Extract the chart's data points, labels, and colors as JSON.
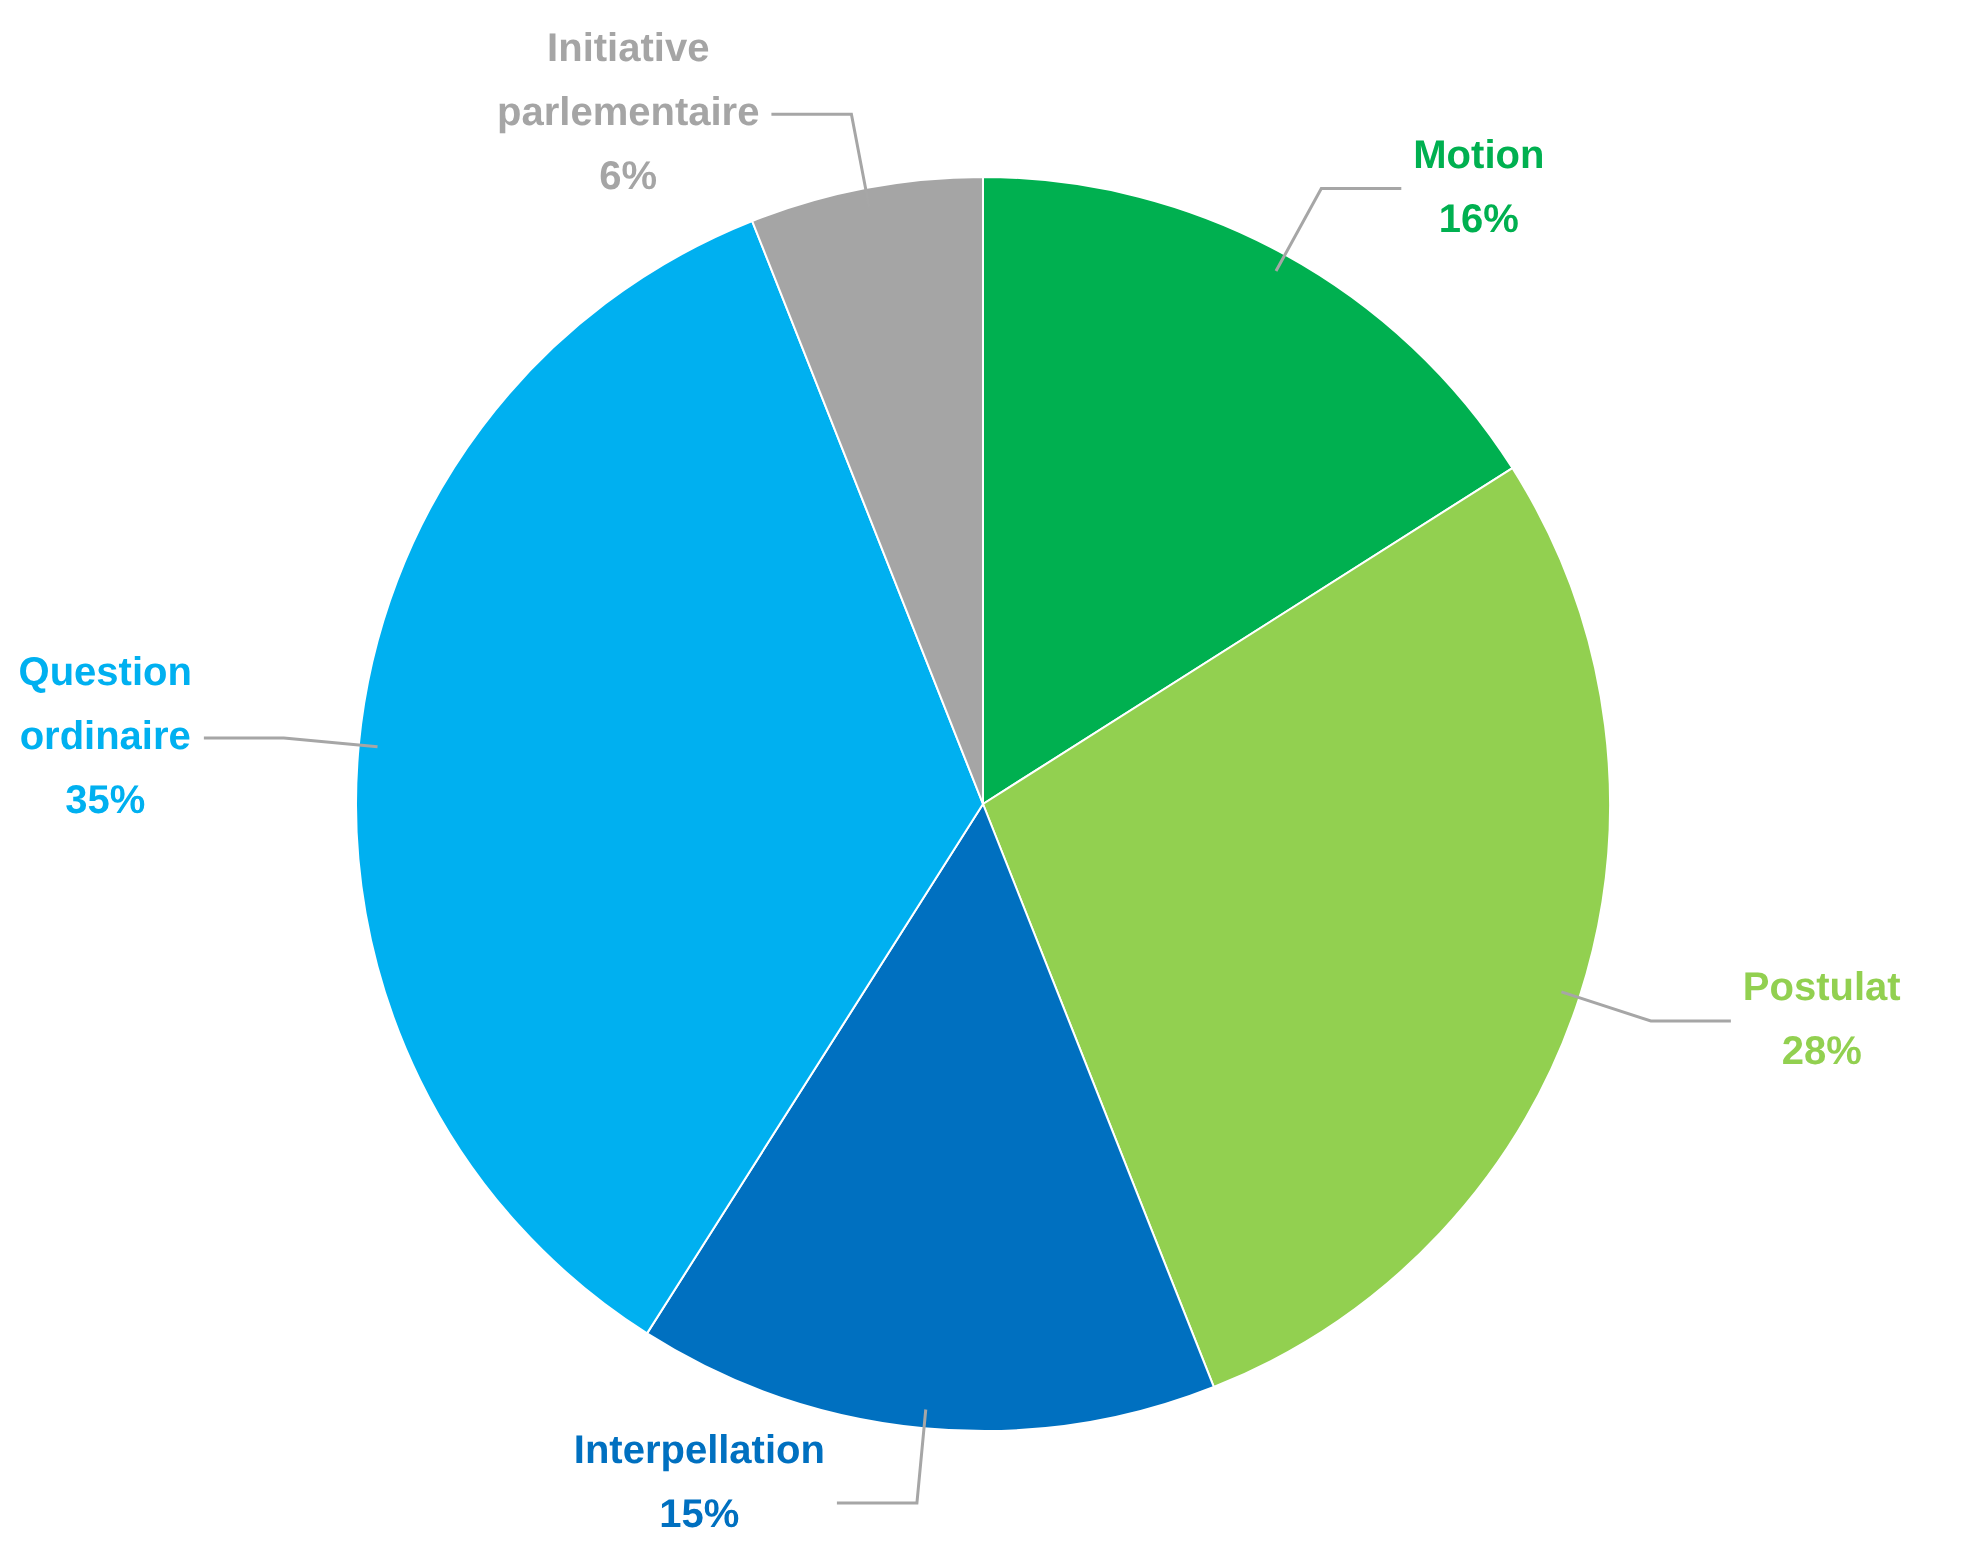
{
  "chart_data": {
    "type": "pie",
    "categories": [
      "Motion",
      "Postulat",
      "Interpellation",
      "Question ordinaire",
      "Initiative parlementaire"
    ],
    "values": [
      16,
      28,
      15,
      35,
      6
    ],
    "value_labels": [
      "16%",
      "28%",
      "15%",
      "35%",
      "6%"
    ],
    "colors": [
      "#00b050",
      "#92d050",
      "#0070c0",
      "#00b0f0",
      "#a5a5a5"
    ],
    "legend": false
  }
}
